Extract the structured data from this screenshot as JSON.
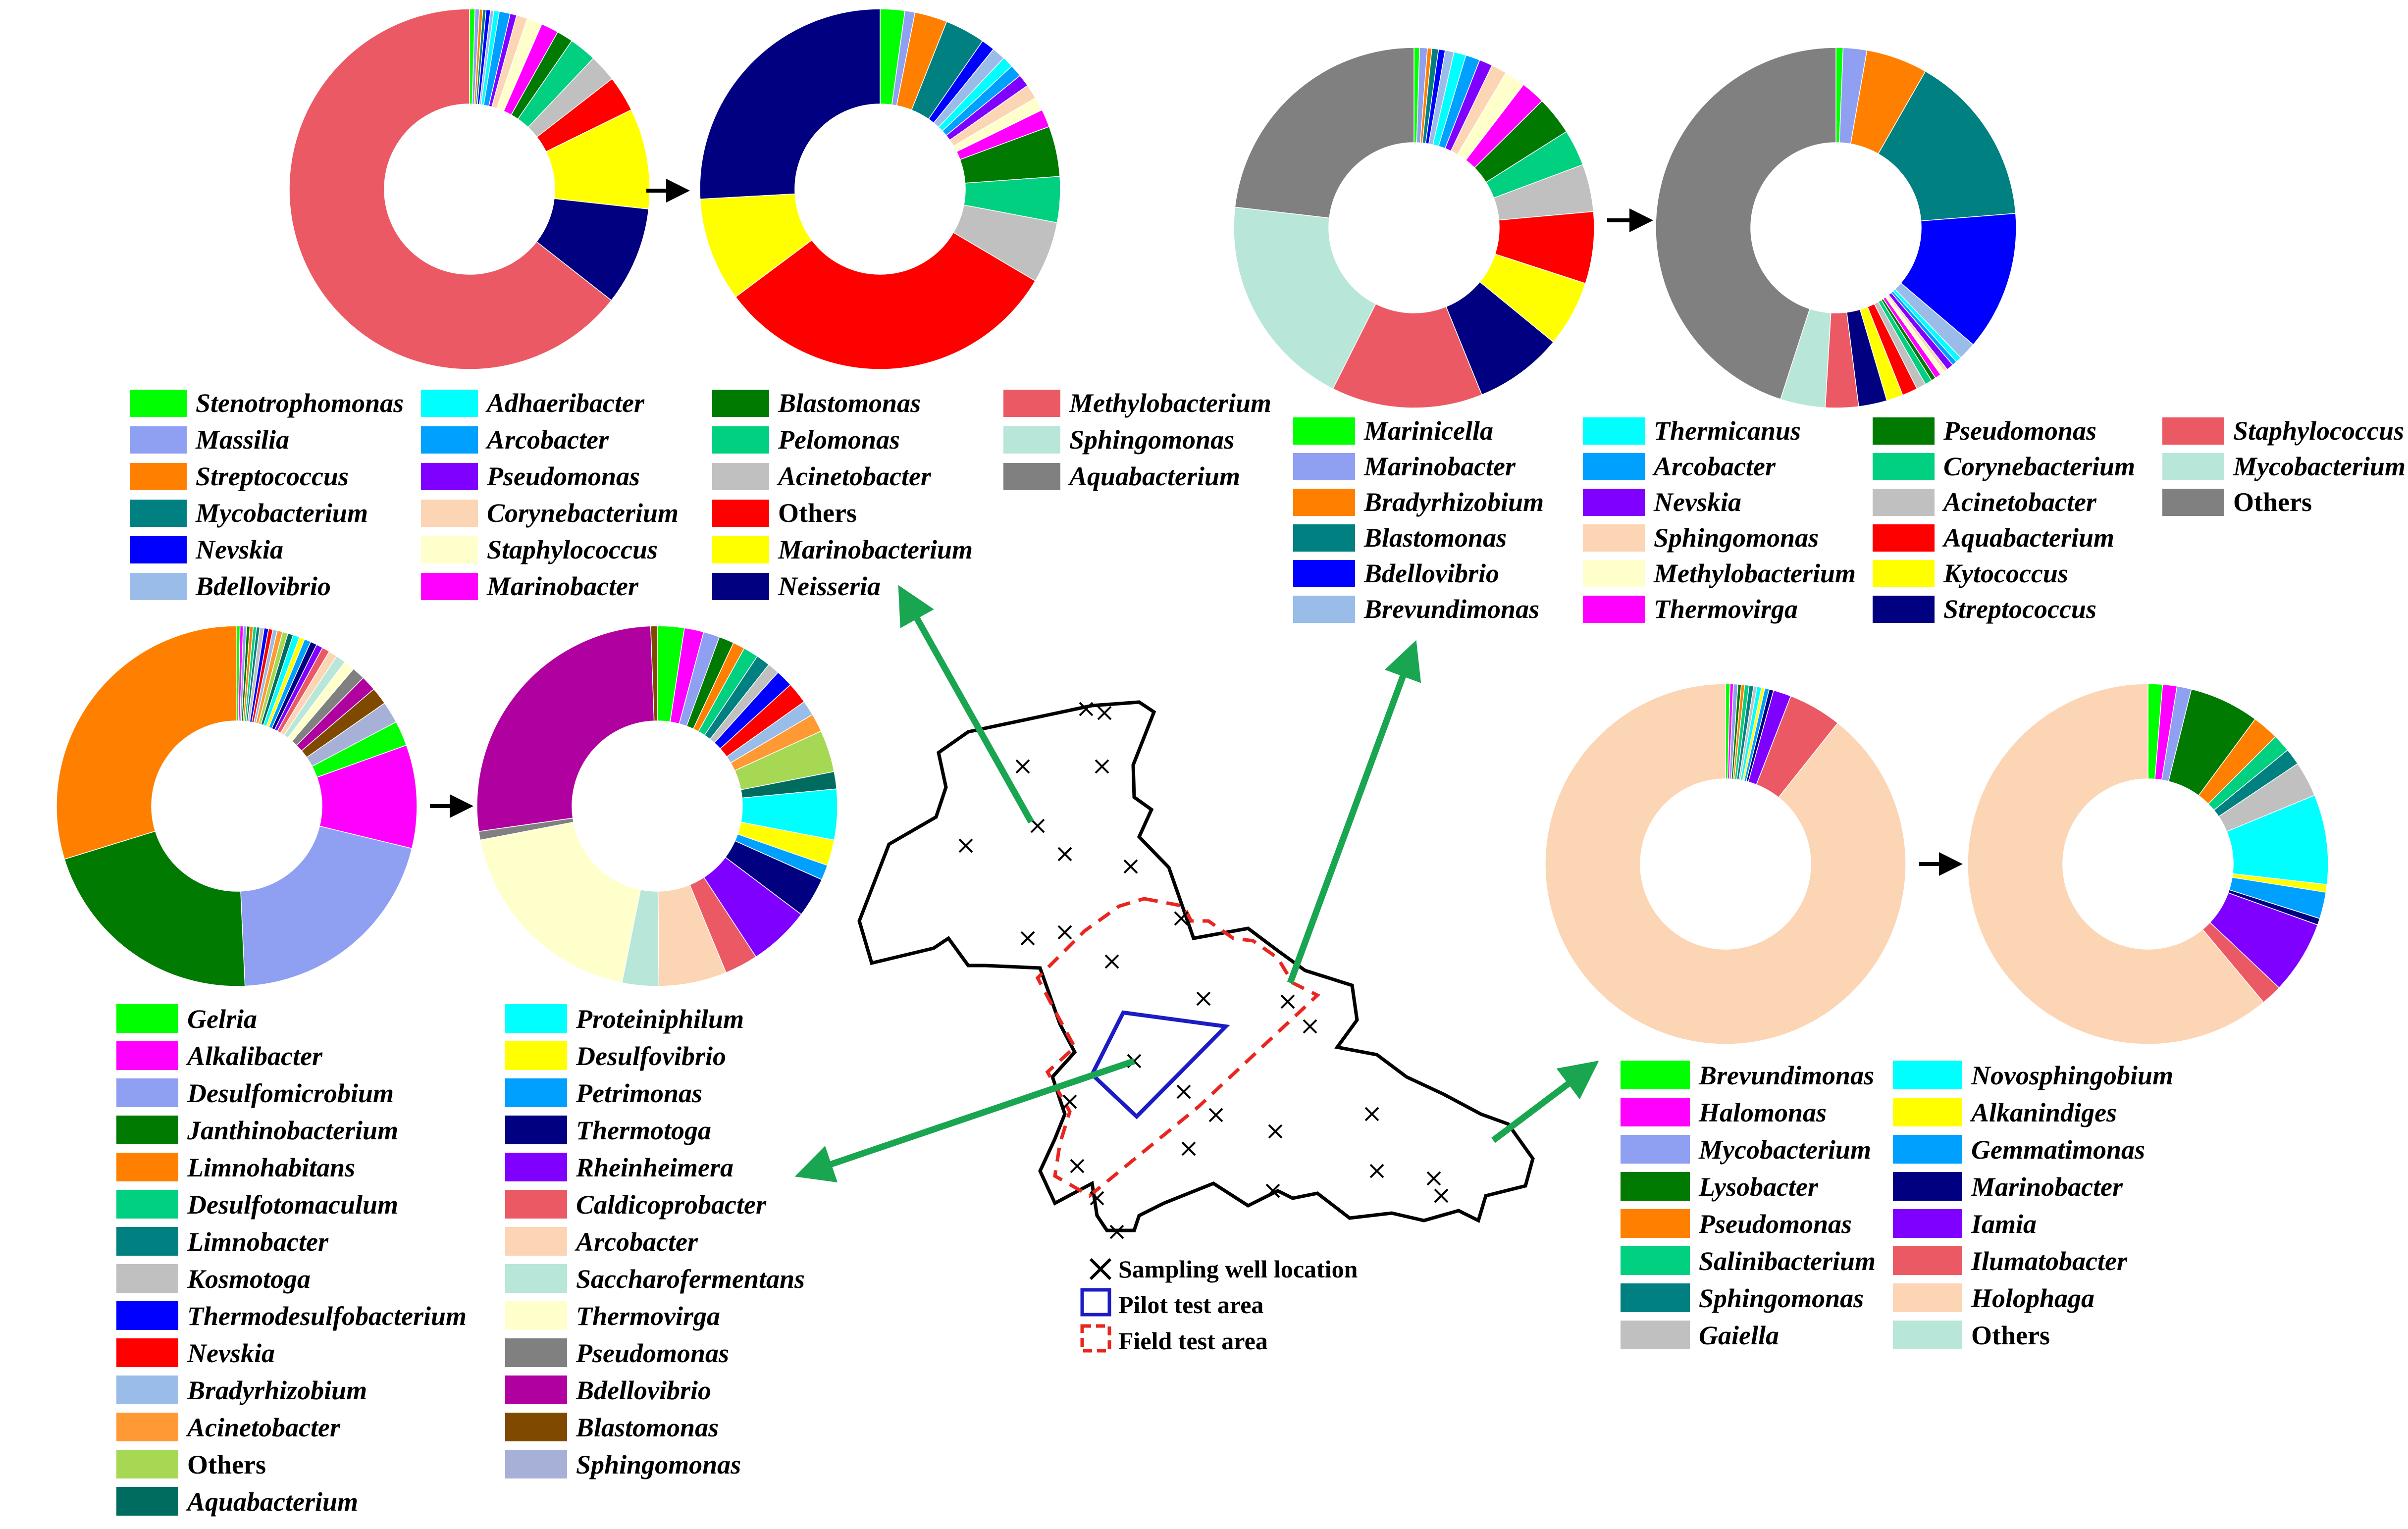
{
  "colors": {
    "arrow": "#1aa551",
    "map_outline": "#000000",
    "pilot_area": "#1c1cc4",
    "field_area": "#e8261f"
  },
  "map": {
    "legend": {
      "sampling_well": "Sampling well location",
      "pilot_area": "Pilot test area",
      "field_area": "Field test area"
    }
  },
  "chart_data": [
    {
      "type": "pie",
      "panel": "top-left",
      "series": [
        {
          "name": "",
          "values": [
            0.5,
            0.4,
            0.3,
            0.3,
            0.4,
            0.3,
            0.5,
            1.0,
            0.6,
            1.0,
            1.4,
            1.6,
            1.5,
            2.5,
            2.5,
            3.3,
            9.2,
            9.0,
            65.7
          ]
        },
        {
          "name": "",
          "values": [
            2.2,
            0.9,
            2.9,
            3.6,
            1.2,
            1.2,
            1.0,
            1.1,
            1.1,
            1.3,
            1.2,
            1.6,
            4.5,
            4.1,
            5.5,
            31.2,
            9.3,
            25.8
          ]
        }
      ],
      "legend": [
        {
          "label": "Stenotrophomonas",
          "color": "#00ff00"
        },
        {
          "label": "Massilia",
          "color": "#8f9ff2"
        },
        {
          "label": "Streptococcus",
          "color": "#ff8000"
        },
        {
          "label": "Mycobacterium",
          "color": "#008080"
        },
        {
          "label": "Nevskia",
          "color": "#0000ff"
        },
        {
          "label": "Bdellovibrio",
          "color": "#99bde8"
        },
        {
          "label": "Adhaeribacter",
          "color": "#00ffff"
        },
        {
          "label": "Arcobacter",
          "color": "#00a0ff"
        },
        {
          "label": "Pseudomonas",
          "color": "#8000ff"
        },
        {
          "label": "Corynebacterium",
          "color": "#fcd5b5"
        },
        {
          "label": "Staphylococcus",
          "color": "#ffffcc"
        },
        {
          "label": "Marinobacter",
          "color": "#ff00ff"
        },
        {
          "label": "Blastomonas",
          "color": "#007a00"
        },
        {
          "label": "Pelomonas",
          "color": "#00d080"
        },
        {
          "label": "Acinetobacter",
          "color": "#c0c0c0"
        },
        {
          "label": "Others",
          "color": "#ff0000"
        },
        {
          "label": "Marinobacterium",
          "color": "#ffff00"
        },
        {
          "label": "Neisseria",
          "color": "#000080"
        },
        {
          "label": "Methylobacterium",
          "color": "#eb5a64"
        },
        {
          "label": "Sphingomonas",
          "color": "#b8e6d8"
        },
        {
          "label": "Aquabacterium",
          "color": "#808080"
        }
      ]
    },
    {
      "type": "pie",
      "panel": "top-right",
      "series": [
        {
          "name": "",
          "values": [
            0.5,
            0.7,
            0.4,
            0.6,
            0.6,
            0.8,
            1.1,
            1.3,
            1.2,
            1.4,
            1.9,
            2.2,
            3.5,
            3.3,
            4.3,
            6.5,
            6.0,
            8.0,
            13.7,
            19.6,
            23.4
          ]
        },
        {
          "name": "",
          "values": [
            0.6,
            2.0,
            5.2,
            14.6,
            11.8,
            1.5,
            0.5,
            0.4,
            0.6,
            0.3,
            0.4,
            0.5,
            0.4,
            0.6,
            0.8,
            1.3,
            1.4,
            2.4,
            2.8,
            3.8,
            42.5
          ]
        }
      ],
      "legend": [
        {
          "label": "Marinicella",
          "color": "#00ff00"
        },
        {
          "label": "Marinobacter",
          "color": "#8f9ff2"
        },
        {
          "label": "Bradyrhizobium",
          "color": "#ff8000"
        },
        {
          "label": "Blastomonas",
          "color": "#008080"
        },
        {
          "label": "Bdellovibrio",
          "color": "#0000ff"
        },
        {
          "label": "Brevundimonas",
          "color": "#99bde8"
        },
        {
          "label": "Thermicanus",
          "color": "#00ffff"
        },
        {
          "label": "Arcobacter",
          "color": "#00a0ff"
        },
        {
          "label": "Nevskia",
          "color": "#8000ff"
        },
        {
          "label": "Sphingomonas",
          "color": "#fcd5b5"
        },
        {
          "label": "Methylobacterium",
          "color": "#ffffcc"
        },
        {
          "label": "Thermovirga",
          "color": "#ff00ff"
        },
        {
          "label": "Pseudomonas",
          "color": "#007a00"
        },
        {
          "label": "Corynebacterium",
          "color": "#00d080"
        },
        {
          "label": "Acinetobacter",
          "color": "#c0c0c0"
        },
        {
          "label": "Aquabacterium",
          "color": "#ff0000"
        },
        {
          "label": "Kytococcus",
          "color": "#ffff00"
        },
        {
          "label": "Streptococcus",
          "color": "#000080"
        },
        {
          "label": "Staphylococcus",
          "color": "#eb5a64"
        },
        {
          "label": "Mycobacterium",
          "color": "#b8e6d8"
        },
        {
          "label": "Others",
          "color": "#808080"
        }
      ]
    },
    {
      "type": "pie",
      "panel": "middle-left",
      "series": [
        {
          "name": "",
          "values": [
            0.3,
            0.3,
            0.3,
            0.3,
            0.3,
            0.3,
            0.3,
            0.4,
            0.4,
            0.4,
            0.4,
            0.5,
            0.5,
            0.5,
            0.6,
            0.5,
            0.6,
            0.6,
            0.6,
            0.7,
            0.8,
            0.9,
            1.0,
            1.2,
            1.4,
            1.6,
            2.0,
            2.3,
            9.5,
            21.0,
            21.5,
            30.5
          ]
        },
        {
          "name": "",
          "values": [
            2.5,
            1.8,
            1.5,
            1.4,
            1.1,
            1.4,
            1.3,
            1.1,
            1.6,
            2.0,
            1.4,
            1.7,
            3.9,
            1.6,
            4.7,
            2.4,
            1.4,
            3.7,
            5.7,
            3.1,
            6.3,
            3.4,
            19.5,
            0.8,
            27.6,
            0.6
          ]
        }
      ],
      "legend": [
        {
          "label": "Gelria",
          "color": "#00ff00"
        },
        {
          "label": "Alkalibacter",
          "color": "#ff00ff"
        },
        {
          "label": "Desulfomicrobium",
          "color": "#8f9ff2"
        },
        {
          "label": "Janthinobacterium",
          "color": "#007a00"
        },
        {
          "label": "Limnohabitans",
          "color": "#ff8000"
        },
        {
          "label": "Desulfotomaculum",
          "color": "#00d080"
        },
        {
          "label": "Limnobacter",
          "color": "#008080"
        },
        {
          "label": "Kosmotoga",
          "color": "#c0c0c0"
        },
        {
          "label": "Thermodesulfobacterium",
          "color": "#0000ff"
        },
        {
          "label": "Nevskia",
          "color": "#ff0000"
        },
        {
          "label": "Bradyrhizobium",
          "color": "#99bde8"
        },
        {
          "label": "Acinetobacter",
          "color": "#ff9933"
        },
        {
          "label": "Others",
          "color": "#a6d854"
        },
        {
          "label": "Aquabacterium",
          "color": "#006b5f"
        },
        {
          "label": "Proteiniphilum",
          "color": "#00ffff"
        },
        {
          "label": "Desulfovibrio",
          "color": "#ffff00"
        },
        {
          "label": "Petrimonas",
          "color": "#00a0ff"
        },
        {
          "label": "Thermotoga",
          "color": "#000080"
        },
        {
          "label": "Rheinheimera",
          "color": "#8000ff"
        },
        {
          "label": "Caldicoprobacter",
          "color": "#eb5a64"
        },
        {
          "label": "Arcobacter",
          "color": "#fcd5b5"
        },
        {
          "label": "Saccharofermentans",
          "color": "#b8e6d8"
        },
        {
          "label": "Thermovirga",
          "color": "#ffffcc"
        },
        {
          "label": "Pseudomonas",
          "color": "#808080"
        },
        {
          "label": "Bdellovibrio",
          "color": "#b000a0"
        },
        {
          "label": "Blastomonas",
          "color": "#7f4a00"
        },
        {
          "label": "Sphingomonas",
          "color": "#a7b1d8"
        }
      ]
    },
    {
      "type": "pie",
      "panel": "middle-right",
      "series": [
        {
          "name": "",
          "values": [
            0.4,
            0.3,
            0.4,
            0.3,
            0.3,
            0.4,
            0.4,
            0.3,
            0.4,
            0.3,
            0.4,
            0.4,
            1.6,
            4.8,
            89.3
          ]
        },
        {
          "name": "",
          "values": [
            1.3,
            1.3,
            1.3,
            6.3,
            2.4,
            1.6,
            1.5,
            3.2,
            8.1,
            0.7,
            2.4,
            0.6,
            6.6,
            1.9,
            61.5
          ]
        }
      ],
      "legend": [
        {
          "label": "Brevundimonas",
          "color": "#00ff00"
        },
        {
          "label": "Halomonas",
          "color": "#ff00ff"
        },
        {
          "label": "Mycobacterium",
          "color": "#8f9ff2"
        },
        {
          "label": "Lysobacter",
          "color": "#007a00"
        },
        {
          "label": "Pseudomonas",
          "color": "#ff8000"
        },
        {
          "label": "Salinibacterium",
          "color": "#00d080"
        },
        {
          "label": "Sphingomonas",
          "color": "#008080"
        },
        {
          "label": "Gaiella",
          "color": "#c0c0c0"
        },
        {
          "label": "Novosphingobium",
          "color": "#00ffff"
        },
        {
          "label": "Alkanindiges",
          "color": "#ffff00"
        },
        {
          "label": "Gemmatimonas",
          "color": "#00a0ff"
        },
        {
          "label": "Marinobacter",
          "color": "#000080"
        },
        {
          "label": "Iamia",
          "color": "#8000ff"
        },
        {
          "label": "Ilumatobacter",
          "color": "#eb5a64"
        },
        {
          "label": "Holophaga",
          "color": "#fcd5b5"
        },
        {
          "label": "Others",
          "color": "#b8e6d8"
        }
      ]
    }
  ]
}
